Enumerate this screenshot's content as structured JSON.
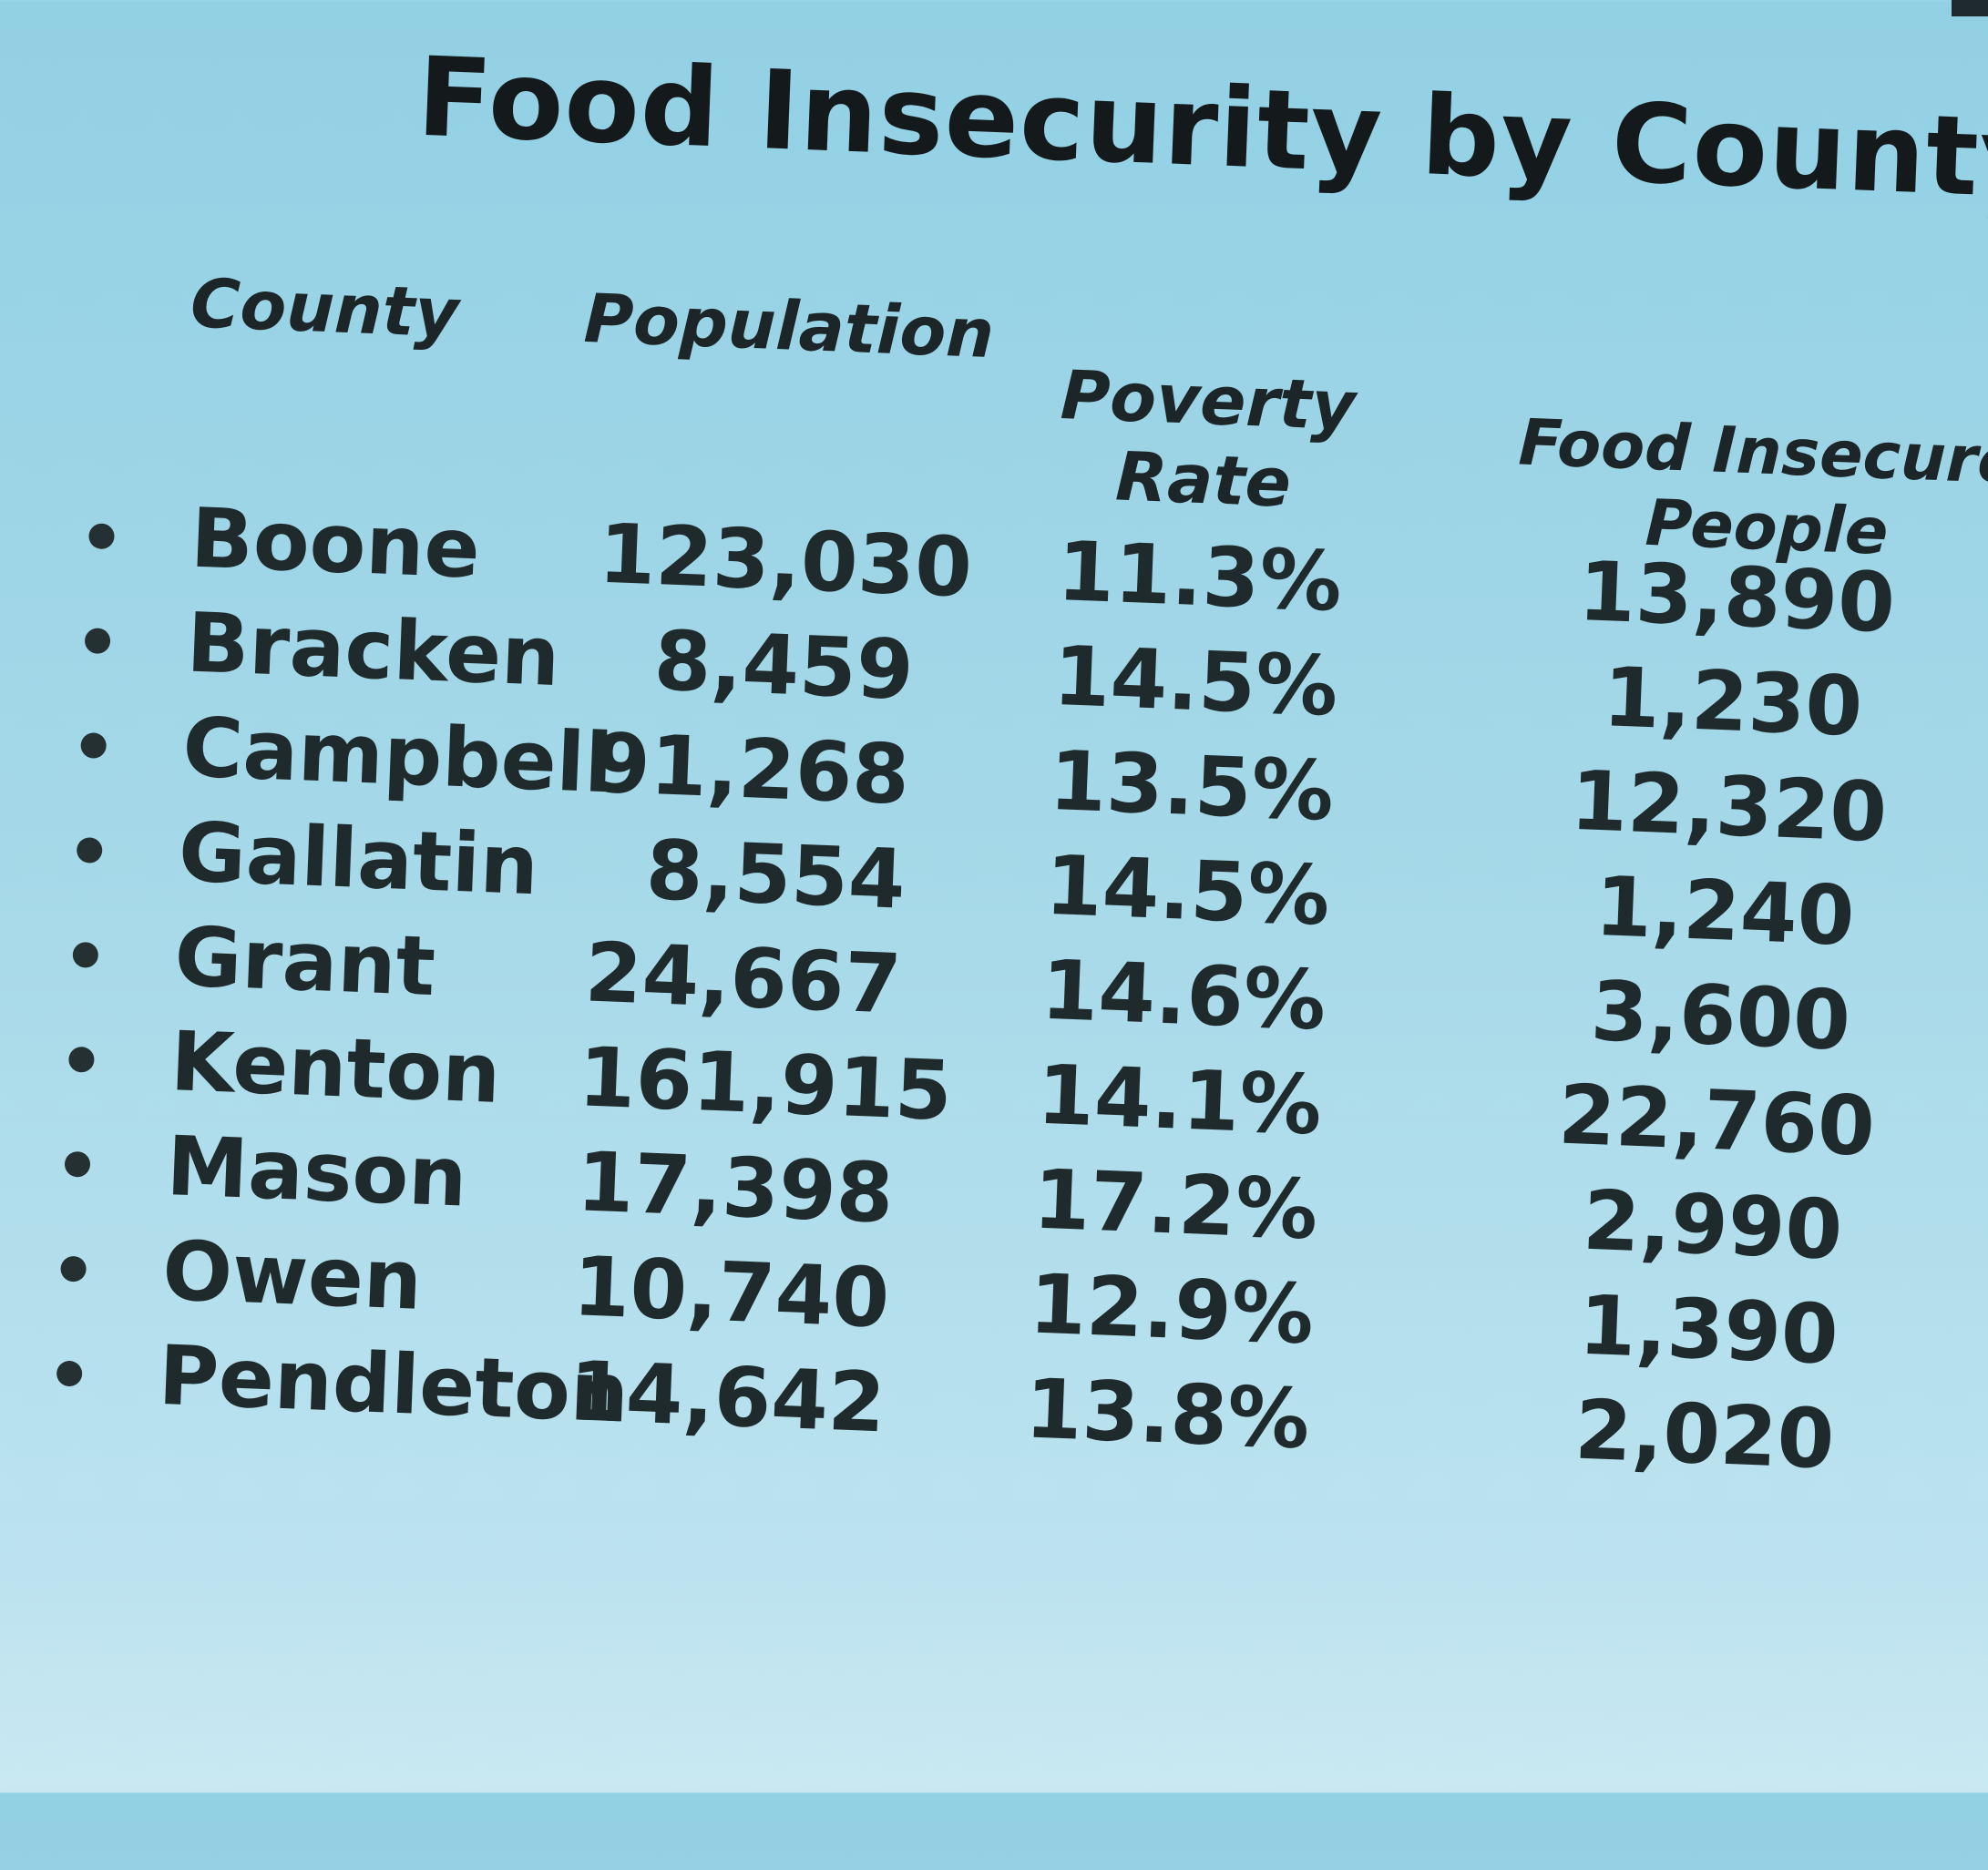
{
  "title": "Food Insecurity by County",
  "headers": {
    "county": "County",
    "population": "Population",
    "poverty_line1": "Poverty",
    "poverty_line2": "Rate",
    "food_line1": "Food Insecure",
    "food_line2": "People"
  },
  "rows": [
    {
      "county": "Boone",
      "population": "123,030",
      "poverty": "11.3%",
      "food": "13,890"
    },
    {
      "county": "Bracken",
      "population": "8,459",
      "poverty": "14.5%",
      "food": "1,230"
    },
    {
      "county": "Campbell",
      "population": "91,268",
      "poverty": "13.5%",
      "food": "12,320"
    },
    {
      "county": "Gallatin",
      "population": "8,554",
      "poverty": "14.5%",
      "food": "1,240"
    },
    {
      "county": "Grant",
      "population": "24,667",
      "poverty": "14.6%",
      "food": "3,600"
    },
    {
      "county": "Kenton",
      "population": "161,915",
      "poverty": "14.1%",
      "food": "22,760"
    },
    {
      "county": "Mason",
      "population": "17,398",
      "poverty": "17.2%",
      "food": "2,990"
    },
    {
      "county": "Owen",
      "population": "10,740",
      "poverty": "12.9%",
      "food": "1,390"
    },
    {
      "county": "Pendleton",
      "population": "14,642",
      "poverty": "13.8%",
      "food": "2,020"
    }
  ]
}
